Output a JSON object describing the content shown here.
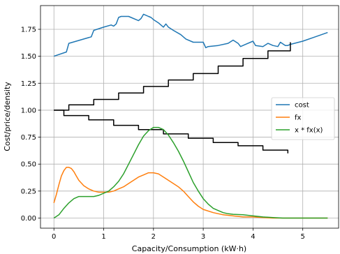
{
  "chart_data": {
    "type": "line",
    "xlabel": "Capacity/Consumption (kW·h)",
    "ylabel": "Cost/price/density",
    "xlim": [
      -0.27,
      5.72
    ],
    "ylim": [
      -0.094,
      1.97
    ],
    "xticks": [
      0,
      1,
      2,
      3,
      4,
      5
    ],
    "xtick_labels": [
      "0",
      "1",
      "2",
      "3",
      "4",
      "5"
    ],
    "yticks": [
      0.0,
      0.25,
      0.5,
      0.75,
      1.0,
      1.25,
      1.5,
      1.75
    ],
    "ytick_labels": [
      "0.00",
      "0.25",
      "0.50",
      "0.75",
      "1.00",
      "1.25",
      "1.50",
      "1.75"
    ],
    "grid": true,
    "legend_position": "center-right",
    "series": [
      {
        "name": "cost",
        "color": "#1f77b4",
        "step": false,
        "x": [
          0.0,
          0.25,
          0.3,
          0.45,
          0.6,
          0.75,
          0.8,
          1.0,
          1.15,
          1.2,
          1.25,
          1.3,
          1.35,
          1.5,
          1.55,
          1.65,
          1.7,
          1.75,
          1.8,
          1.85,
          1.9,
          1.95,
          2.0,
          2.1,
          2.15,
          2.2,
          2.25,
          2.3,
          2.4,
          2.55,
          2.65,
          2.8,
          3.0,
          3.05,
          3.1,
          3.3,
          3.5,
          3.6,
          3.7,
          3.75,
          3.85,
          4.0,
          4.05,
          4.2,
          4.3,
          4.4,
          4.5,
          4.55,
          4.65,
          4.7,
          4.75,
          5.0,
          5.25,
          5.5
        ],
        "y": [
          1.5,
          1.54,
          1.62,
          1.64,
          1.66,
          1.68,
          1.74,
          1.77,
          1.79,
          1.78,
          1.8,
          1.86,
          1.87,
          1.87,
          1.86,
          1.84,
          1.83,
          1.85,
          1.89,
          1.88,
          1.87,
          1.86,
          1.84,
          1.81,
          1.79,
          1.77,
          1.8,
          1.77,
          1.74,
          1.7,
          1.66,
          1.63,
          1.63,
          1.58,
          1.59,
          1.6,
          1.62,
          1.65,
          1.62,
          1.59,
          1.61,
          1.64,
          1.6,
          1.59,
          1.62,
          1.6,
          1.59,
          1.63,
          1.6,
          1.6,
          1.61,
          1.64,
          1.68,
          1.72
        ]
      },
      {
        "name": "",
        "color": "#000000",
        "step": true,
        "x": [
          0.0,
          0.3,
          0.8,
          1.3,
          1.8,
          2.3,
          2.8,
          3.3,
          3.8,
          4.3,
          4.75
        ],
        "y": [
          1.0,
          1.05,
          1.1,
          1.16,
          1.22,
          1.28,
          1.34,
          1.41,
          1.48,
          1.55,
          1.63
        ]
      },
      {
        "name": "",
        "color": "#000000",
        "step": true,
        "x": [
          0.0,
          0.2,
          0.7,
          1.2,
          1.7,
          2.2,
          2.7,
          3.2,
          3.7,
          4.2,
          4.7
        ],
        "y": [
          1.0,
          0.95,
          0.91,
          0.86,
          0.82,
          0.78,
          0.74,
          0.7,
          0.67,
          0.63,
          0.6
        ]
      },
      {
        "name": "fx",
        "color": "#ff7f0e",
        "step": false,
        "x": [
          0.0,
          0.05,
          0.1,
          0.15,
          0.2,
          0.25,
          0.3,
          0.35,
          0.4,
          0.45,
          0.5,
          0.6,
          0.7,
          0.8,
          0.9,
          1.0,
          1.1,
          1.2,
          1.3,
          1.4,
          1.5,
          1.6,
          1.7,
          1.8,
          1.9,
          2.0,
          2.1,
          2.2,
          2.3,
          2.4,
          2.5,
          2.6,
          2.7,
          2.8,
          2.9,
          3.0,
          3.2,
          3.4,
          3.6,
          3.8,
          4.0,
          4.2,
          4.4,
          4.6,
          4.8,
          5.0,
          5.25,
          5.5
        ],
        "y": [
          0.14,
          0.22,
          0.31,
          0.39,
          0.44,
          0.47,
          0.47,
          0.46,
          0.43,
          0.39,
          0.35,
          0.3,
          0.27,
          0.25,
          0.24,
          0.24,
          0.24,
          0.25,
          0.27,
          0.29,
          0.32,
          0.35,
          0.38,
          0.4,
          0.42,
          0.42,
          0.41,
          0.38,
          0.35,
          0.32,
          0.29,
          0.25,
          0.2,
          0.15,
          0.11,
          0.08,
          0.05,
          0.03,
          0.02,
          0.01,
          0.01,
          0.005,
          0.0,
          0.0,
          0.0,
          0.0,
          0.0,
          0.0
        ]
      },
      {
        "name": "x * fx(x)",
        "color": "#2ca02c",
        "step": false,
        "x": [
          0.0,
          0.1,
          0.2,
          0.3,
          0.4,
          0.5,
          0.6,
          0.7,
          0.8,
          0.9,
          1.0,
          1.1,
          1.2,
          1.3,
          1.4,
          1.5,
          1.6,
          1.7,
          1.8,
          1.9,
          2.0,
          2.1,
          2.2,
          2.3,
          2.4,
          2.5,
          2.6,
          2.7,
          2.8,
          2.9,
          3.0,
          3.1,
          3.2,
          3.3,
          3.4,
          3.5,
          3.6,
          3.8,
          4.0,
          4.2,
          4.4,
          4.6,
          4.8,
          5.0,
          5.25,
          5.5
        ],
        "y": [
          0.0,
          0.03,
          0.09,
          0.14,
          0.18,
          0.2,
          0.2,
          0.2,
          0.2,
          0.21,
          0.23,
          0.25,
          0.29,
          0.34,
          0.41,
          0.5,
          0.59,
          0.68,
          0.76,
          0.81,
          0.84,
          0.84,
          0.82,
          0.77,
          0.7,
          0.62,
          0.53,
          0.43,
          0.33,
          0.25,
          0.18,
          0.13,
          0.09,
          0.07,
          0.05,
          0.04,
          0.035,
          0.03,
          0.02,
          0.01,
          0.005,
          0.0,
          0.0,
          0.0,
          0.0,
          0.0
        ]
      }
    ]
  }
}
